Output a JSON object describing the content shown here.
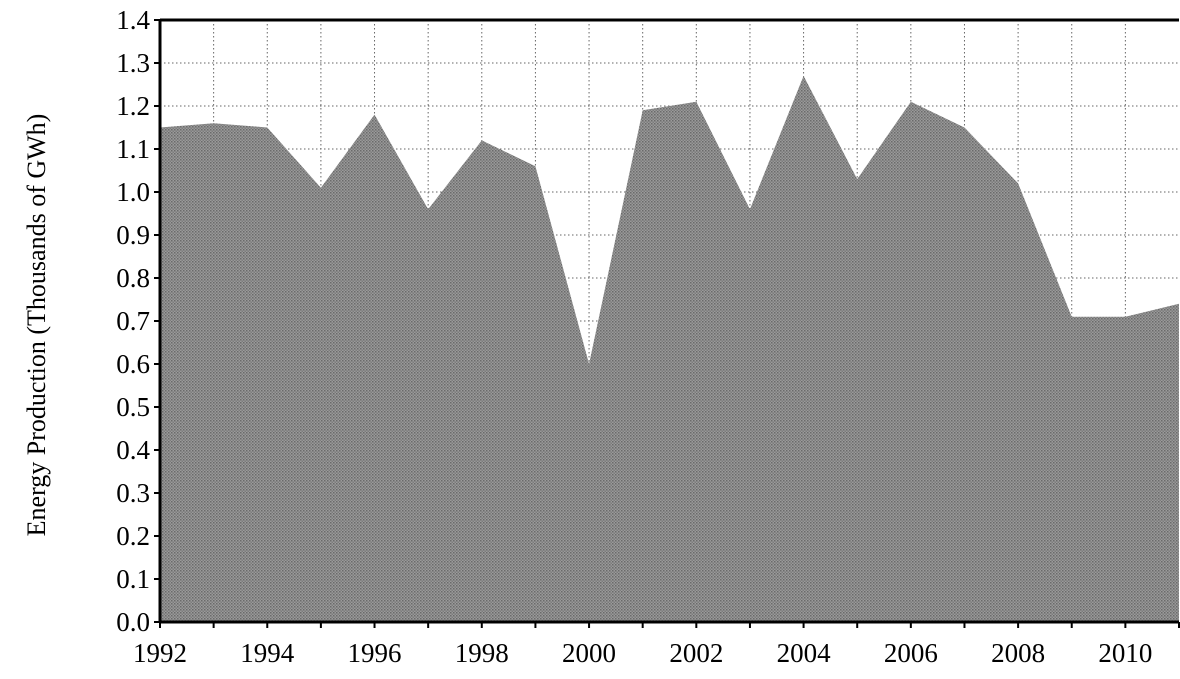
{
  "chart_data": {
    "type": "area",
    "ylabel": "Energy Production (Thousands of GWh)",
    "xlabel": "",
    "title": "",
    "xlim": [
      1992,
      2011
    ],
    "ylim": [
      0,
      1.4
    ],
    "grid": true,
    "grid_style": "dotted",
    "y_ticks": [
      "0.0",
      "0.1",
      "0.2",
      "0.3",
      "0.4",
      "0.5",
      "0.6",
      "0.7",
      "0.8",
      "0.9",
      "1.0",
      "1.1",
      "1.2",
      "1.3",
      "1.4"
    ],
    "x_ticks": [
      "1992",
      "1994",
      "1996",
      "1998",
      "2000",
      "2002",
      "2004",
      "2006",
      "2008",
      "2010"
    ],
    "fill_color": "#8a8a8a",
    "series": [
      {
        "x": [
          1992,
          1993,
          1994,
          1995,
          1996,
          1997,
          1998,
          1999,
          2000,
          2001,
          2002,
          2003,
          2004,
          2005,
          2006,
          2007,
          2008,
          2009,
          2010,
          2011
        ],
        "values": [
          1.15,
          1.16,
          1.15,
          1.01,
          1.18,
          0.96,
          1.12,
          1.06,
          0.6,
          1.19,
          1.21,
          0.96,
          1.27,
          1.03,
          1.21,
          1.15,
          1.02,
          0.71,
          0.71,
          0.74
        ]
      }
    ]
  }
}
